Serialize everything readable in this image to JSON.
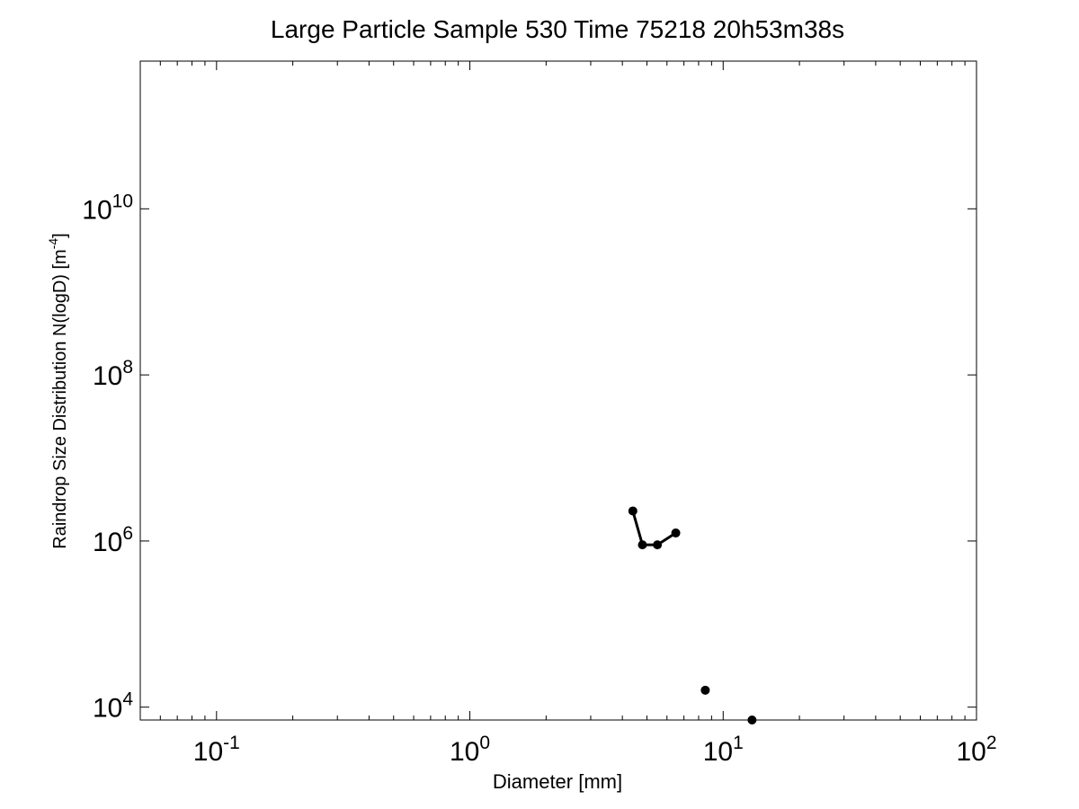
{
  "chart_data": {
    "type": "line",
    "title": "Large Particle Sample 530 Time 75218 20h53m38s",
    "xlabel": "Diameter [mm]",
    "ylabel": "Raindrop Size Distribution N(logD) [m",
    "ylabel_sup": "-4",
    "ylabel_close": "]",
    "xscale": "log",
    "yscale": "log",
    "xlim": [
      0.05,
      100
    ],
    "ylim": [
      7000,
      600000000000
    ],
    "grid": false,
    "x_ticks": [
      {
        "value": 0.1,
        "base": "10",
        "exp": "-1"
      },
      {
        "value": 1,
        "base": "10",
        "exp": "0"
      },
      {
        "value": 10,
        "base": "10",
        "exp": "1"
      },
      {
        "value": 100,
        "base": "10",
        "exp": "2"
      }
    ],
    "y_ticks": [
      {
        "value": 10000,
        "base": "10",
        "exp": "4"
      },
      {
        "value": 1000000,
        "base": "10",
        "exp": "6"
      },
      {
        "value": 100000000,
        "base": "10",
        "exp": "8"
      },
      {
        "value": 10000000000,
        "base": "10",
        "exp": "10"
      }
    ],
    "series": [
      {
        "connected": true,
        "color": "#000000",
        "points": [
          [
            4.4,
            2300000
          ],
          [
            4.8,
            900000
          ],
          [
            5.5,
            900000
          ],
          [
            6.5,
            1250000
          ]
        ]
      },
      {
        "connected": false,
        "color": "#000000",
        "points": [
          [
            8.5,
            16000
          ]
        ]
      },
      {
        "connected": false,
        "color": "#000000",
        "points": [
          [
            13,
            7000
          ]
        ]
      }
    ]
  }
}
